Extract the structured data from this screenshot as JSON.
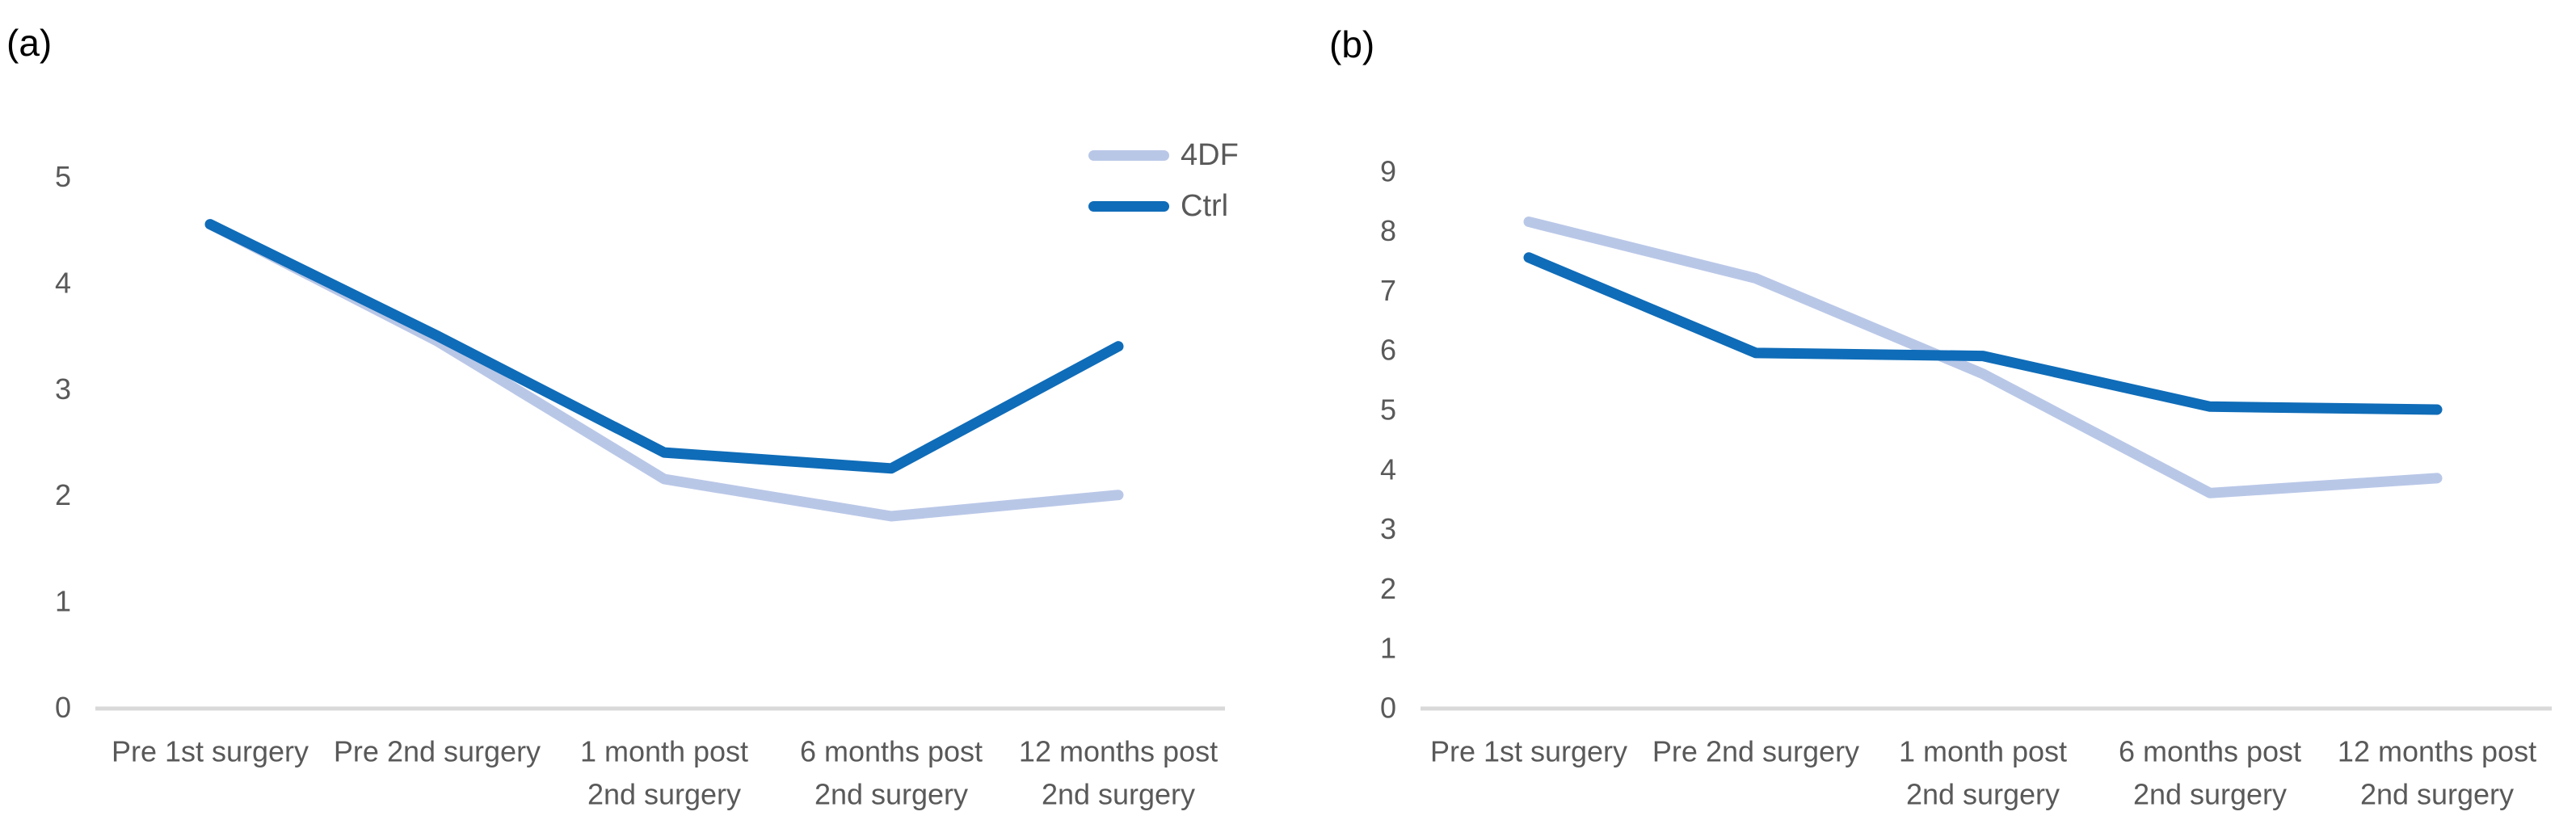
{
  "figure": {
    "background": "#ffffff",
    "text_color": "#595959",
    "axis_line_color": "#d9d9d9",
    "panel_label_color": "#000000"
  },
  "chart_data": [
    {
      "panel_label": "(a)",
      "type": "line",
      "grid": false,
      "ylim": [
        0,
        5
      ],
      "yticks": [
        0,
        1,
        2,
        3,
        4,
        5
      ],
      "legend": {
        "visible": true,
        "position": "top-right",
        "entries": [
          "4DF",
          "Ctrl"
        ]
      },
      "categories": [
        [
          "Pre 1st surgery"
        ],
        [
          "Pre 2nd surgery"
        ],
        [
          "1 month post",
          "2nd surgery"
        ],
        [
          "6 months post",
          "2nd surgery"
        ],
        [
          "12 months post",
          "2nd surgery"
        ]
      ],
      "series": [
        {
          "name": "4DF",
          "color": "#b9c7e7",
          "values": [
            4.55,
            3.45,
            2.15,
            1.8,
            2.0
          ]
        },
        {
          "name": "Ctrl",
          "color": "#0f6cb8",
          "values": [
            4.55,
            3.5,
            2.4,
            2.25,
            3.4
          ]
        }
      ]
    },
    {
      "panel_label": "(b)",
      "type": "line",
      "grid": false,
      "ylim": [
        0,
        9
      ],
      "yticks": [
        0,
        1,
        2,
        3,
        4,
        5,
        6,
        7,
        8,
        9
      ],
      "legend": {
        "visible": false
      },
      "categories": [
        [
          "Pre 1st surgery"
        ],
        [
          "Pre 2nd surgery"
        ],
        [
          "1 month post",
          "2nd surgery"
        ],
        [
          "6 months post",
          "2nd surgery"
        ],
        [
          "12 months post",
          "2nd surgery"
        ]
      ],
      "series": [
        {
          "name": "4DF",
          "color": "#b9c7e7",
          "values": [
            8.15,
            7.2,
            5.6,
            3.6,
            3.85
          ]
        },
        {
          "name": "Ctrl",
          "color": "#0f6cb8",
          "values": [
            7.55,
            5.95,
            5.9,
            5.05,
            5.0
          ]
        }
      ]
    }
  ]
}
